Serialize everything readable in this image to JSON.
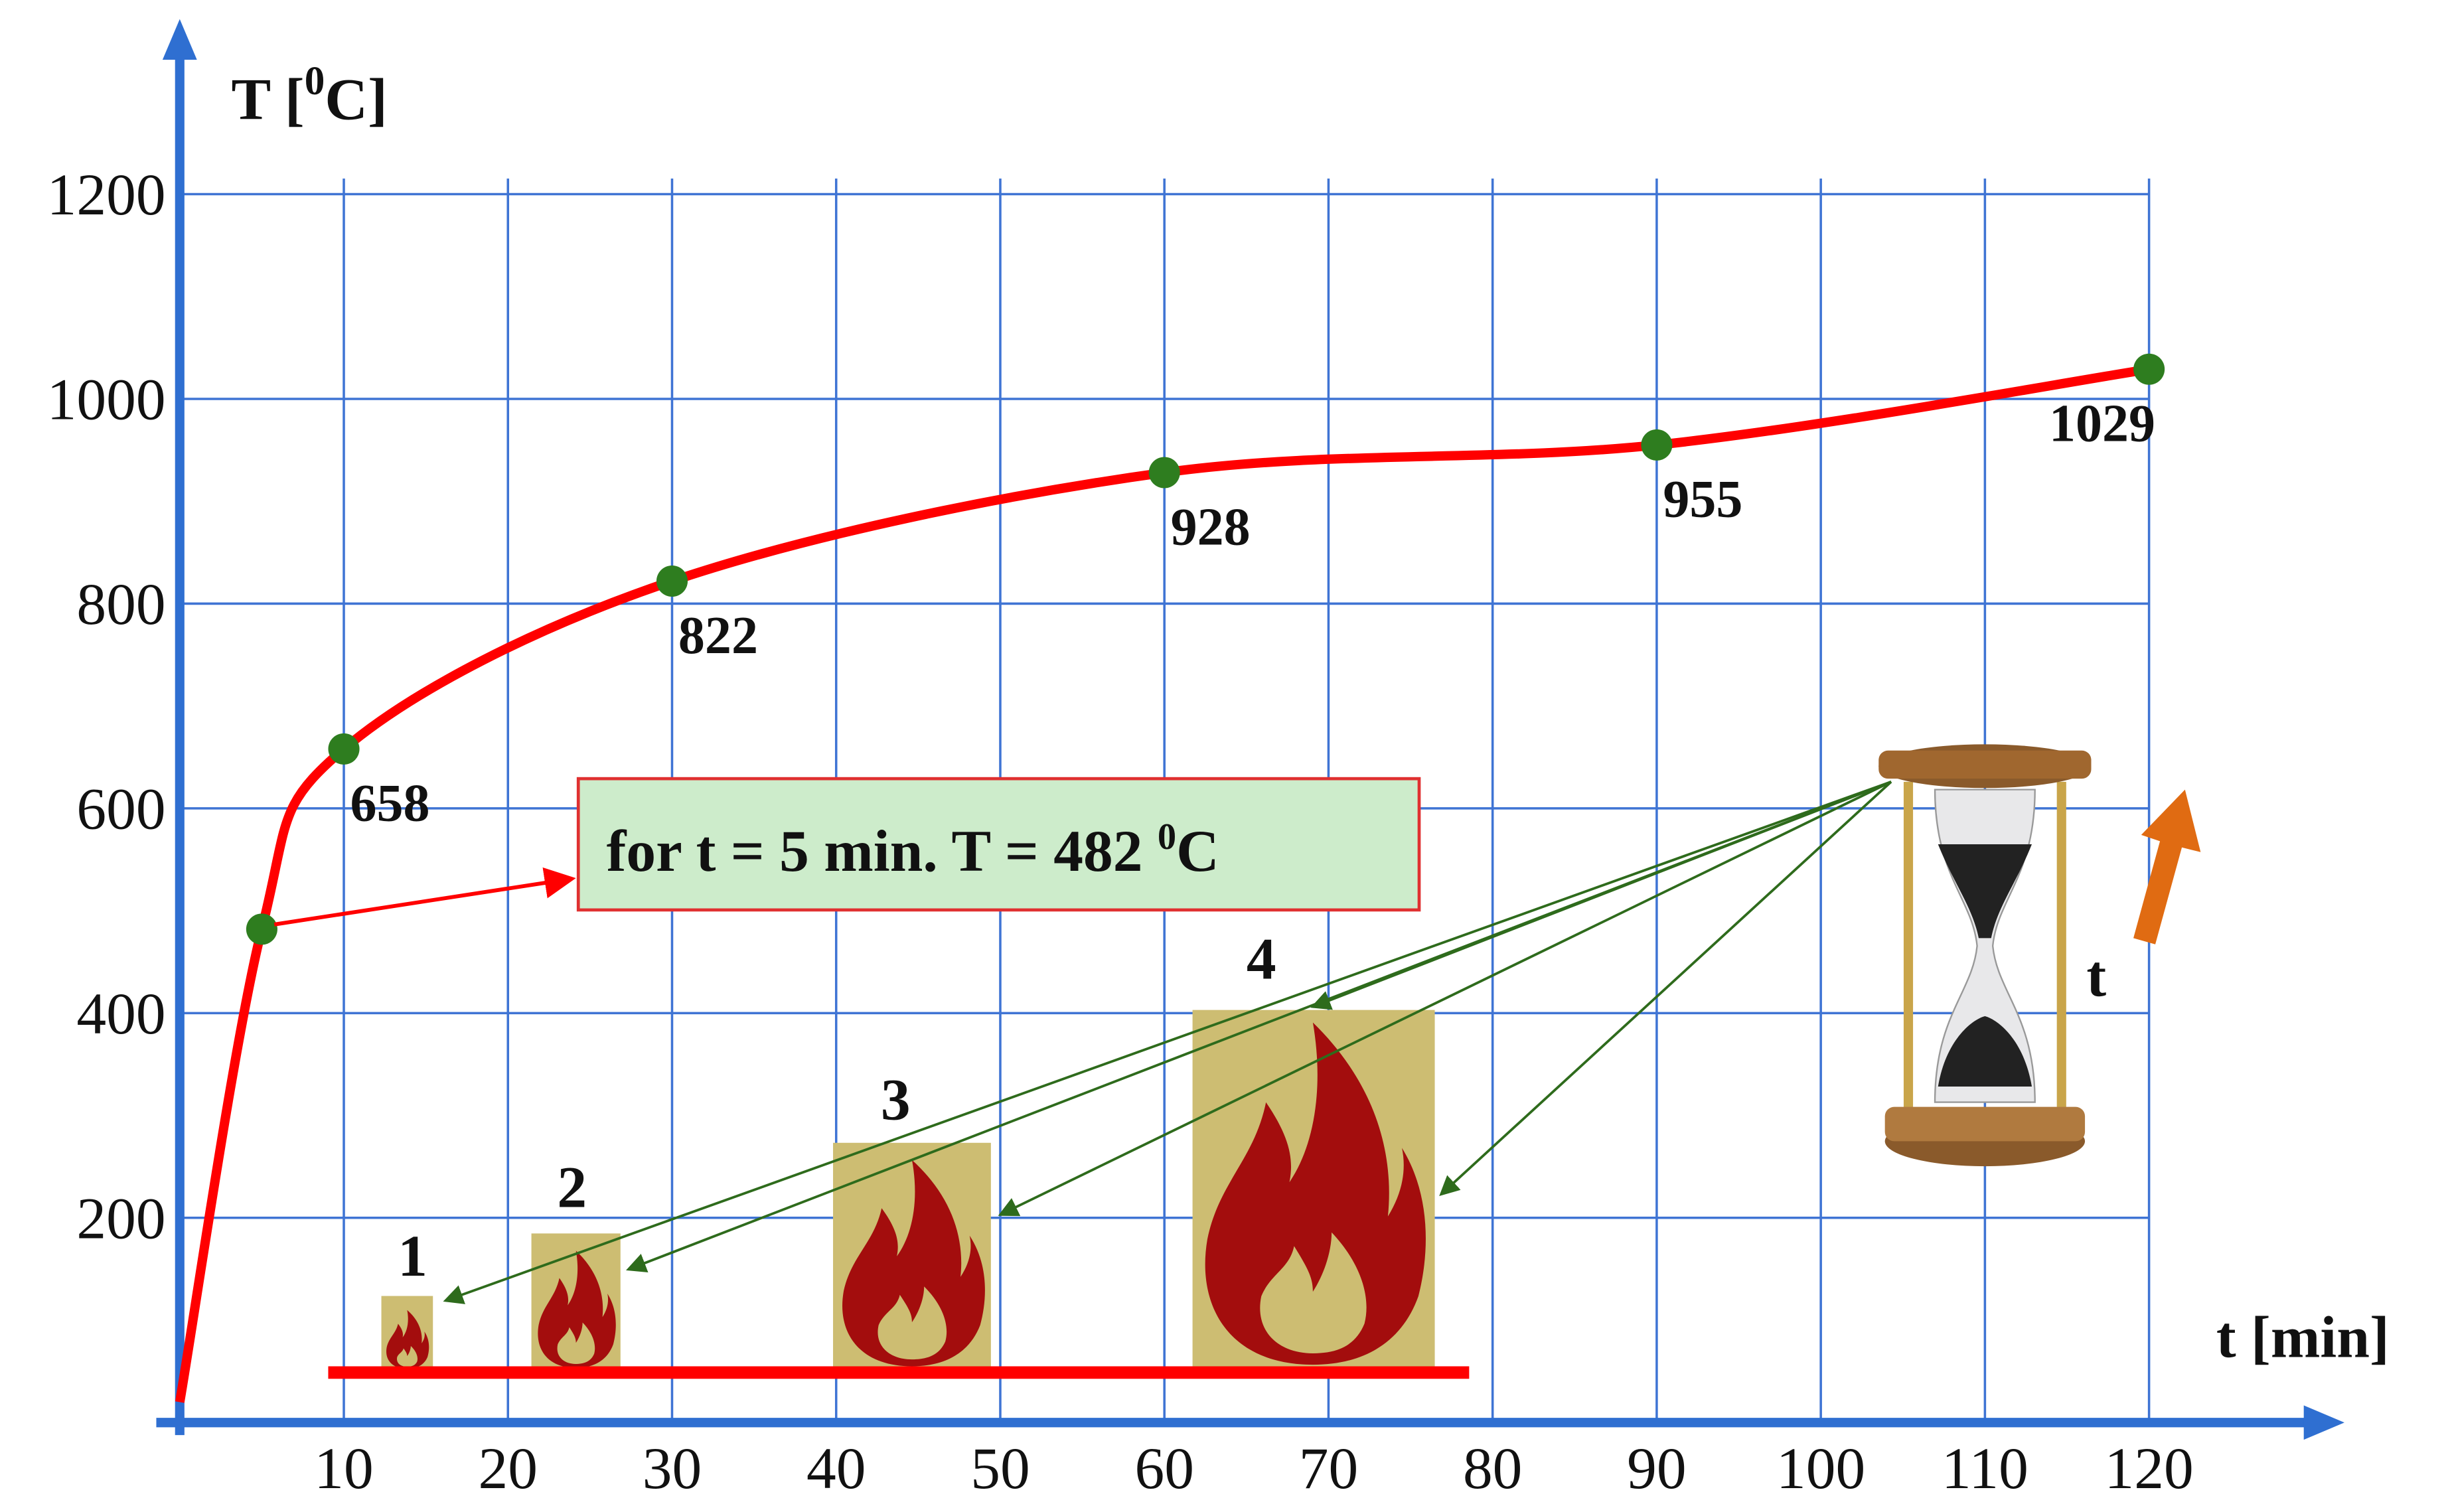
{
  "chart_data": {
    "type": "line",
    "y_label": {
      "pre": "T [",
      "sup": "0",
      "post": "C]"
    },
    "x_label": "t [min]",
    "x": [
      0,
      5,
      10,
      30,
      60,
      90,
      120
    ],
    "values": [
      20,
      482,
      658,
      822,
      928,
      955,
      1029
    ],
    "value_labels": [
      null,
      null,
      "658",
      "822",
      "928",
      "955",
      "1029"
    ],
    "markers": [
      false,
      true,
      true,
      true,
      true,
      true,
      true
    ],
    "color": "#ff0000",
    "marker_color": "#2e7d1f",
    "grid": true,
    "grid_color": "#3f74d4",
    "axis_color": "#2f6fd1",
    "xlim": [
      0,
      130
    ],
    "ylim": [
      0,
      1300
    ],
    "xticks": [
      10,
      20,
      30,
      40,
      50,
      60,
      70,
      80,
      90,
      100,
      110,
      120
    ],
    "yticks": [
      200,
      400,
      600,
      800,
      1000,
      1200
    ],
    "annotation": {
      "pre": "for t = 5 min. T = 482 ",
      "sup": "0",
      "post": "C"
    },
    "fire_labels": [
      "1",
      "2",
      "3",
      "4"
    ],
    "time_label": "t"
  }
}
